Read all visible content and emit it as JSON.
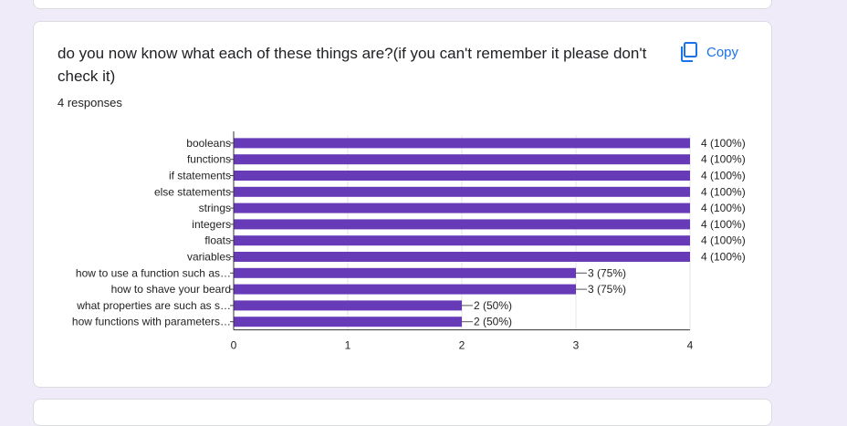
{
  "question": {
    "title": "do you now know what each of these things are?(if you can't remember it please don't check it)",
    "responses": "4 responses",
    "copy_label": "Copy",
    "copy_icon": "copy-icon"
  },
  "colors": {
    "bar": "#673ab7",
    "accent": "#1a73e8",
    "background": "#f0ebf8"
  },
  "chart_data": {
    "type": "bar",
    "orientation": "horizontal",
    "categories": [
      "booleans",
      "functions",
      "if statements",
      "else statements",
      "strings",
      "integers",
      "floats",
      "variables",
      "how to use a function such as…",
      "how to shave your beard",
      "what properties are such as s…",
      "how functions with parameters…"
    ],
    "values": [
      4,
      4,
      4,
      4,
      4,
      4,
      4,
      4,
      3,
      3,
      2,
      2
    ],
    "data_labels": [
      "4 (100%)",
      "4 (100%)",
      "4 (100%)",
      "4 (100%)",
      "4 (100%)",
      "4 (100%)",
      "4 (100%)",
      "4 (100%)",
      "3 (75%)",
      "3 (75%)",
      "2 (50%)",
      "2 (50%)"
    ],
    "xlim": [
      0,
      4
    ],
    "xticks": [
      "0",
      "1",
      "2",
      "3",
      "4"
    ],
    "grid": true,
    "legend": "none"
  }
}
